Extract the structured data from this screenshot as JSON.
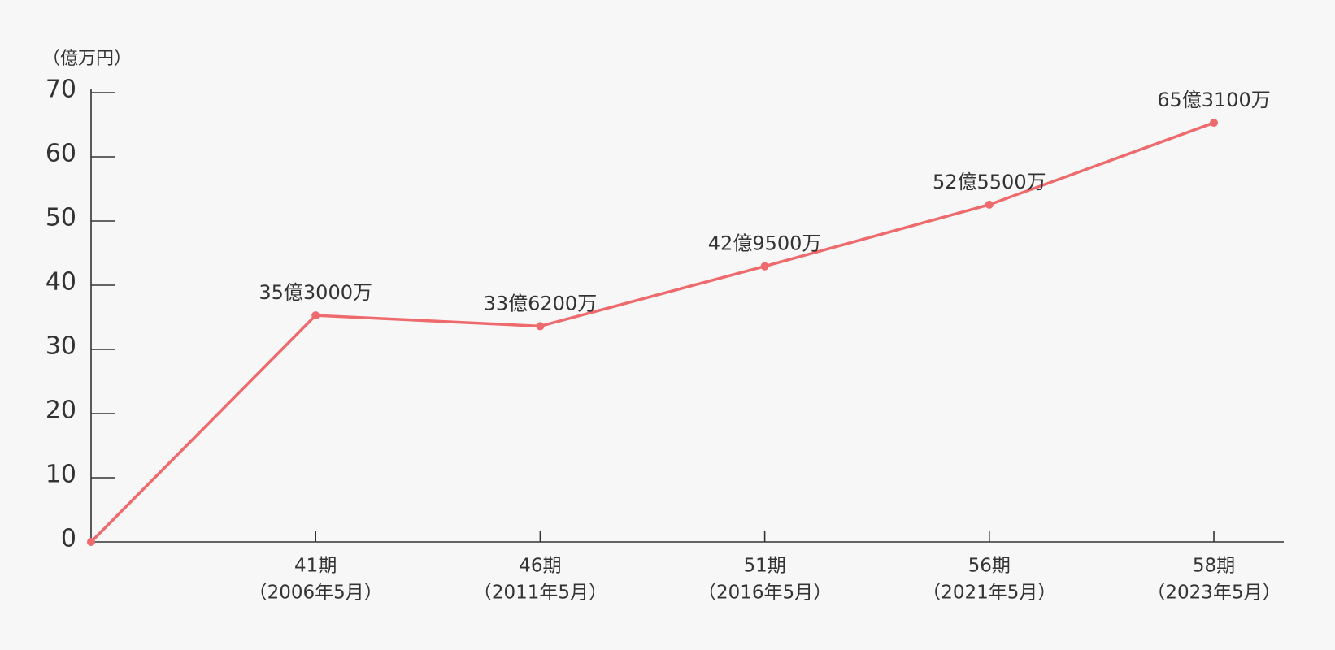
{
  "chart_data": {
    "type": "line",
    "y_unit": "（億万円）",
    "categories": [
      null,
      "41期",
      "46期",
      "51期",
      "56期",
      "58期"
    ],
    "periods": [
      null,
      "（2006年5月）",
      "（2011年5月）",
      "（2016年5月）",
      "（2021年5月）",
      "（2023年5月）"
    ],
    "series": [
      {
        "color": "#ee6a6d",
        "values": [
          0,
          35.3,
          33.62,
          42.95,
          52.55,
          65.31
        ],
        "value_labels": [
          null,
          "35億3000万",
          "33億6200万",
          "42億9500万",
          "52億5500万",
          "65億3100万"
        ]
      }
    ],
    "ylim": [
      0,
      70
    ],
    "yticks": [
      0,
      10,
      20,
      30,
      40,
      50,
      60,
      70
    ]
  }
}
